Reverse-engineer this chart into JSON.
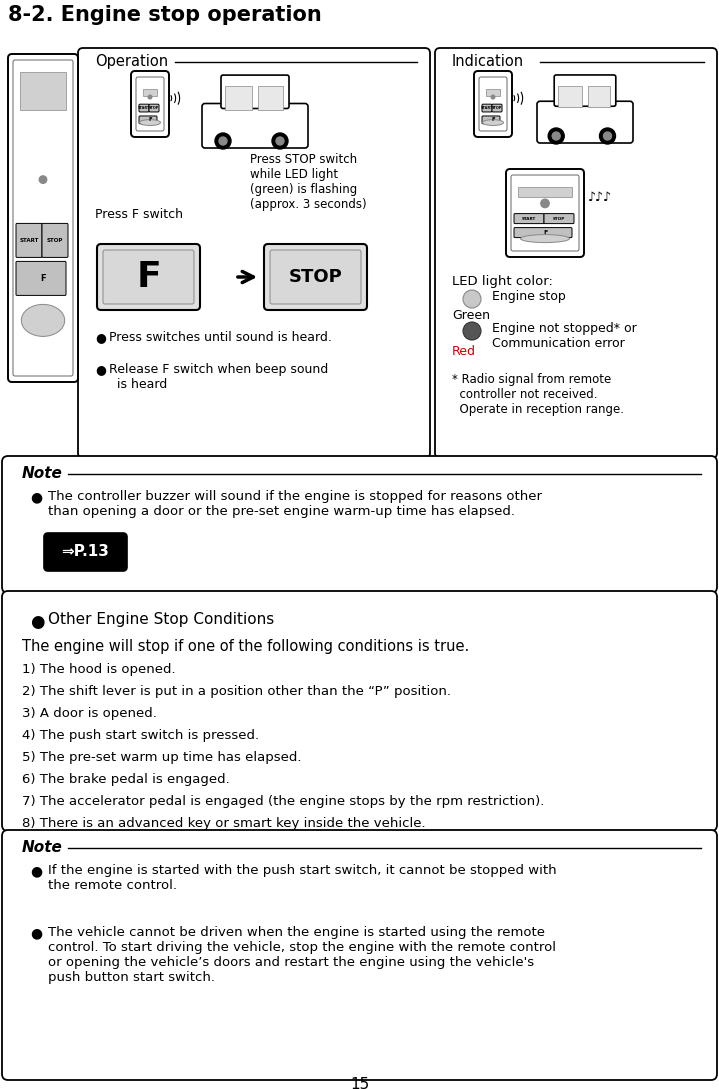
{
  "title": "8-2. Engine stop operation",
  "page_number": "15",
  "bg": "#ffffff",
  "operation_label": "Operation",
  "indication_label": "Indication",
  "press_f_switch": "Press F switch",
  "press_stop_text": "Press STOP switch\nwhile LED light\n(green) is flashing\n(approx. 3 seconds)",
  "bullet_op1": "Press switches until sound is heard.",
  "bullet_op2": "Release F switch when beep sound\n  is heard",
  "led_label": "LED light color:",
  "green_label": "Green",
  "engine_stop_label": "Engine stop",
  "red_label": "Red",
  "engine_not_stopped_label": "Engine not stopped* or\nCommunication error",
  "radio_note": "* Radio signal from remote\n  controller not received.\n  Operate in reception range.",
  "note1_title": "Note",
  "note1_text": "The controller buzzer will sound if the engine is stopped for reasons other\nthan opening a door or the pre-set engine warm-up time has elapsed.",
  "note1_link": "⇒P.13",
  "cond_title": "Other Engine Stop Conditions",
  "cond_intro": "The engine will stop if one of the following conditions is true.",
  "conditions": [
    "1) The hood is opened.",
    "2) The shift lever is put in a position other than the “P” position.",
    "3) A door is opened.",
    "4) The push start switch is pressed.",
    "5) The pre-set warm up time has elapsed.",
    "6) The brake pedal is engaged.",
    "7) The accelerator pedal is engaged (the engine stops by the rpm restriction).",
    "8) There is an advanced key or smart key inside the vehicle."
  ],
  "note2_title": "Note",
  "note2_bullets": [
    "If the engine is started with the push start switch, it cannot be stopped with\nthe remote control.",
    "The vehicle cannot be driven when the engine is started using the remote\ncontrol. To start driving the vehicle, stop the engine with the remote control\nor opening the vehicle’s doors and restart the engine using the vehicle's\npush button start switch."
  ]
}
